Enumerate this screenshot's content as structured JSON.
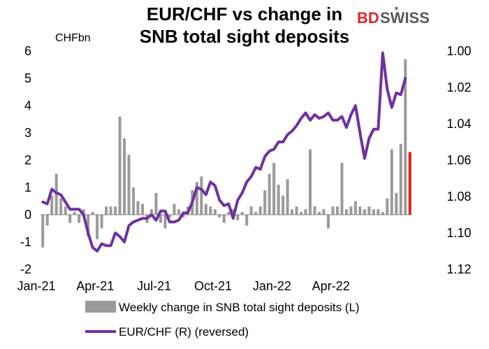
{
  "title_line1": "EUR/CHF vs change in",
  "title_line2": "SNB total sight deposits",
  "logo": {
    "part1": "BD",
    "part2": "SWISS",
    "color_red": "#e3262c",
    "color_grey": "#58595b"
  },
  "unit_label": "CHFbn",
  "chart_data": {
    "type": "bar+line",
    "x_ticks": [
      "Jan-21",
      "Apr-21",
      "Jul-21",
      "Oct-21",
      "Jan-22",
      "Apr-22"
    ],
    "left_axis": {
      "ticks": [
        "6",
        "5",
        "4",
        "3",
        "2",
        "1",
        "0",
        "-1",
        "-2"
      ],
      "ylim": [
        -2,
        6
      ],
      "unit": "CHFbn"
    },
    "right_axis": {
      "ticks": [
        "1.00",
        "1.02",
        "1.04",
        "1.06",
        "1.08",
        "1.10",
        "1.12"
      ],
      "ylim": [
        1.0,
        1.12
      ],
      "reversed": true
    },
    "series": [
      {
        "name": "Weekly change in SNB total sight deposits (L)",
        "kind": "bar",
        "axis": "left",
        "color": "#9b9b9b",
        "highlight_last_color": "#e51b1b",
        "values": [
          -1.2,
          -0.4,
          0.7,
          1.5,
          0.6,
          0.3,
          -0.3,
          0.1,
          -0.3,
          0.2,
          -0.8,
          0.1,
          -0.9,
          -0.5,
          0.3,
          0.3,
          0.3,
          3.6,
          2.8,
          2.2,
          1.0,
          0.5,
          0.4,
          -0.3,
          0.2,
          0.8,
          -0.3,
          -0.5,
          -0.1,
          0.4,
          0.2,
          -0.1,
          0.3,
          0.9,
          1.2,
          1.4,
          0.4,
          0.3,
          0.2,
          -0.1,
          -0.3,
          0.1,
          0.2,
          -0.2,
          0.1,
          -0.4,
          0.3,
          0.1,
          0.3,
          0.9,
          1.5,
          1.9,
          1.1,
          0.7,
          1.3,
          0.2,
          0.3,
          0.1,
          0.2,
          2.4,
          0.3,
          0.1,
          0.2,
          -0.5,
          0.3,
          0.3,
          1.9,
          0.2,
          0.3,
          0.5,
          0.3,
          0.2,
          0.3,
          0.2,
          0.2,
          0.1,
          0.6,
          2.4,
          0.8,
          2.6,
          5.7,
          2.3
        ]
      },
      {
        "name": "EUR/CHF (R) (reversed)",
        "kind": "line",
        "axis": "right",
        "color": "#7030a0",
        "values": [
          1.083,
          1.084,
          1.076,
          1.078,
          1.079,
          1.083,
          1.087,
          1.087,
          1.087,
          1.09,
          1.1,
          1.108,
          1.11,
          1.106,
          1.107,
          1.107,
          1.1,
          1.102,
          1.105,
          1.096,
          1.094,
          1.093,
          1.092,
          1.092,
          1.09,
          1.093,
          1.088,
          1.088,
          1.094,
          1.094,
          1.093,
          1.089,
          1.089,
          1.083,
          1.075,
          1.076,
          1.079,
          1.072,
          1.074,
          1.082,
          1.085,
          1.084,
          1.092,
          1.082,
          1.078,
          1.072,
          1.069,
          1.064,
          1.065,
          1.058,
          1.055,
          1.054,
          1.05,
          1.05,
          1.046,
          1.044,
          1.041,
          1.037,
          1.034,
          1.038,
          1.035,
          1.037,
          1.036,
          1.034,
          1.038,
          1.038,
          1.036,
          1.042,
          1.035,
          1.03,
          1.045,
          1.059,
          1.048,
          1.043,
          1.043,
          1.001,
          1.021,
          1.031,
          1.023,
          1.024,
          1.015
        ]
      }
    ],
    "legend": [
      "Weekly change in SNB total sight deposits (L)",
      "EUR/CHF (R) (reversed)"
    ],
    "legend_position": "bottom",
    "grid": false
  }
}
